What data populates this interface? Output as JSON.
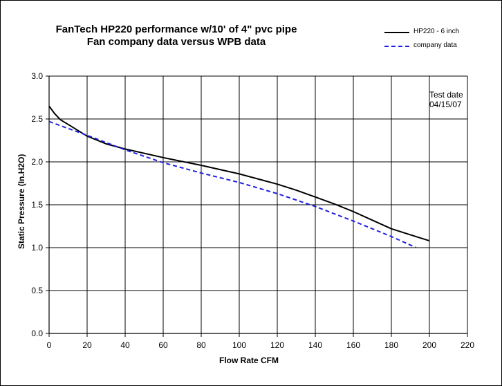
{
  "chart_data": {
    "type": "line",
    "title": "FanTech HP220 performance w/10' of 4\" pvc pipe",
    "subtitle": "Fan company data versus WPB data",
    "xlabel": "Flow Rate CFM",
    "ylabel": "Static Pressure (In.H2O)",
    "xlim": [
      0,
      220
    ],
    "ylim": [
      0.0,
      3.0
    ],
    "x_ticks": [
      "0",
      "20",
      "40",
      "60",
      "80",
      "100",
      "120",
      "140",
      "160",
      "180",
      "200",
      "220"
    ],
    "y_ticks": [
      "0.0",
      "0.5",
      "1.0",
      "1.5",
      "2.0",
      "2.5",
      "3.0"
    ],
    "grid": true,
    "legend_position": "top-right",
    "annotation": [
      "Test date",
      "04/15/07"
    ],
    "series": [
      {
        "name": "HP220 - 6 inch",
        "color": "#000000",
        "style": "solid",
        "x": [
          0,
          3,
          6,
          12,
          20,
          30,
          40,
          60,
          80,
          100,
          120,
          130,
          140,
          150,
          160,
          170,
          180,
          190,
          200
        ],
        "y": [
          2.65,
          2.56,
          2.49,
          2.41,
          2.3,
          2.21,
          2.15,
          2.05,
          1.96,
          1.86,
          1.74,
          1.67,
          1.59,
          1.51,
          1.42,
          1.32,
          1.22,
          1.15,
          1.08
        ]
      },
      {
        "name": "company data",
        "color": "#1f1fe0",
        "style": "dashed",
        "x": [
          0,
          20,
          40,
          60,
          80,
          100,
          120,
          140,
          160,
          180,
          193
        ],
        "y": [
          2.47,
          2.31,
          2.14,
          1.99,
          1.87,
          1.76,
          1.63,
          1.48,
          1.31,
          1.13,
          1.0
        ]
      }
    ]
  }
}
